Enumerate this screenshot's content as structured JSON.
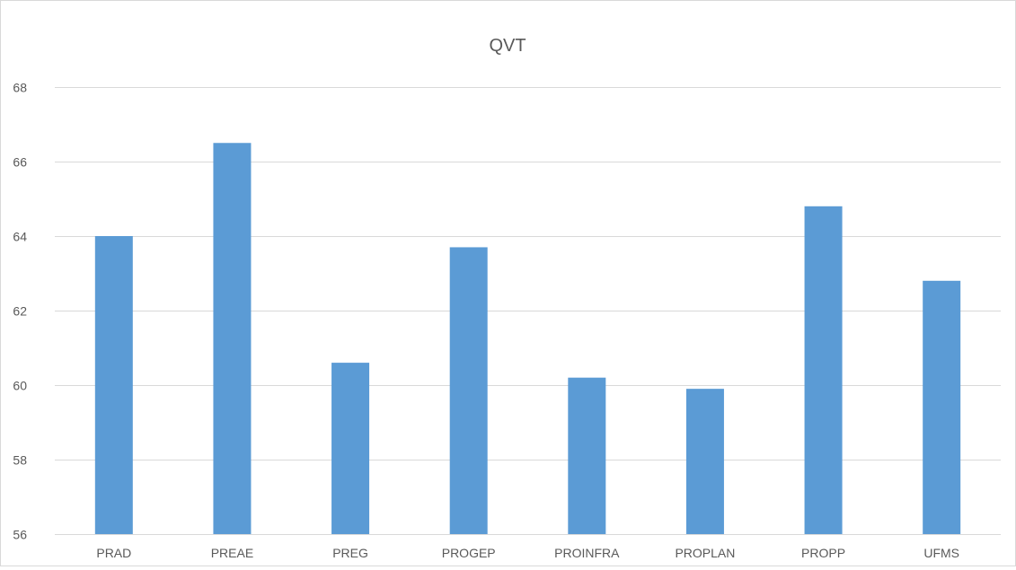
{
  "chart_data": {
    "type": "bar",
    "title": "QVT",
    "xlabel": "",
    "ylabel": "",
    "categories": [
      "PRAD",
      "PREAE",
      "PREG",
      "PROGEP",
      "PROINFRA",
      "PROPLAN",
      "PROPP",
      "UFMS"
    ],
    "values": [
      64.0,
      66.5,
      60.6,
      63.7,
      60.2,
      59.9,
      64.8,
      62.8
    ],
    "ylim": [
      56,
      68
    ],
    "yticks": [
      56,
      58,
      60,
      62,
      64,
      66,
      68
    ],
    "ytick_labels": [
      "56",
      "58",
      "60",
      "62",
      "64",
      "66",
      "68"
    ],
    "grid": true,
    "legend": "none",
    "colors": {
      "bar": "#5b9bd5",
      "grid": "#d9d9d9",
      "axis_text": "#595959",
      "title": "#595959",
      "border": "#d9d9d9"
    }
  }
}
